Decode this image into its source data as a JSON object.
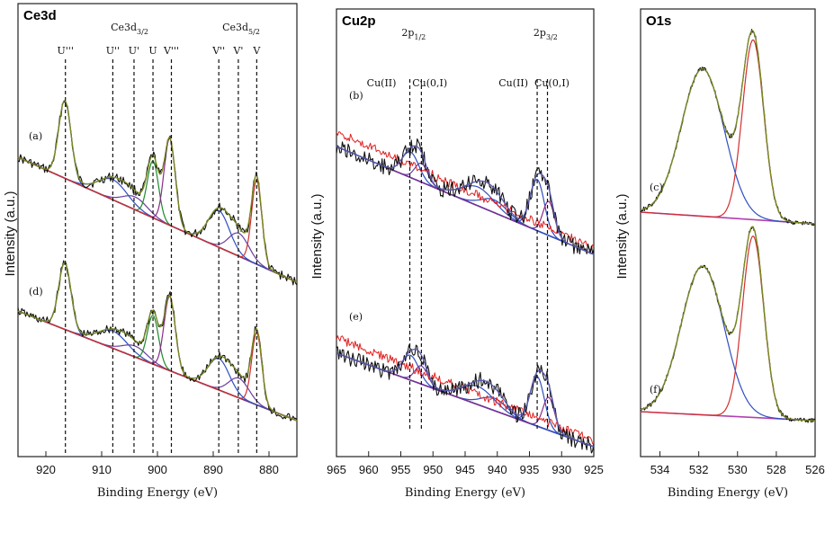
{
  "chart_data": [
    {
      "type": "line",
      "title": "Ce3d",
      "xlabel": "Binding Energy (eV)",
      "ylabel": "Intensity (a.u.)",
      "xlim": [
        925,
        875
      ],
      "xticks": [
        920,
        910,
        900,
        890,
        880
      ],
      "group_labels": [
        {
          "main": "Ce3d",
          "sub": "3/2",
          "x": 905
        },
        {
          "main": "Ce3d",
          "sub": "5/2",
          "x": 885
        }
      ],
      "peaks": [
        {
          "label": "U'''",
          "x": 916.5
        },
        {
          "label": "U''",
          "x": 908
        },
        {
          "label": "U'",
          "x": 904.2
        },
        {
          "label": "U",
          "x": 900.8
        },
        {
          "label": "V'''",
          "x": 897.5
        },
        {
          "label": "V''",
          "x": 889
        },
        {
          "label": "V'",
          "x": 885.5
        },
        {
          "label": "V",
          "x": 882.2
        }
      ],
      "spectra": [
        {
          "label": "(a)",
          "level": 0
        },
        {
          "label": "(d)",
          "level": 1
        }
      ],
      "components": [
        {
          "center": 916.6,
          "amp": 0.85,
          "width": 1.1,
          "color": "#2f4fbf"
        },
        {
          "center": 908.0,
          "amp": 0.22,
          "width": 2.6,
          "color": "#2f4fbf"
        },
        {
          "center": 904.0,
          "amp": 0.14,
          "width": 2.2,
          "color": "#6a3fa0"
        },
        {
          "center": 900.8,
          "amp": 0.62,
          "width": 1.0,
          "color": "#1e8a2e"
        },
        {
          "center": 897.8,
          "amp": 0.95,
          "width": 1.0,
          "color": "#8a2b8a"
        },
        {
          "center": 889.0,
          "amp": 0.4,
          "width": 1.9,
          "color": "#2f4fbf"
        },
        {
          "center": 885.4,
          "amp": 0.25,
          "width": 1.8,
          "color": "#6a3fa0"
        },
        {
          "center": 882.2,
          "amp": 0.92,
          "width": 0.9,
          "color": "#d03030"
        }
      ]
    },
    {
      "type": "line",
      "title": "Cu2p",
      "xlabel": "Binding Energy (eV)",
      "ylabel": "Intensity (a.u.)",
      "xlim": [
        965,
        925
      ],
      "xticks": [
        965,
        960,
        955,
        950,
        945,
        940,
        935,
        930,
        925
      ],
      "group_labels": [
        {
          "main": "2p",
          "sub": "1/2",
          "x": 953
        },
        {
          "main": "2p",
          "sub": "3/2",
          "x": 932.5
        }
      ],
      "state_labels": [
        {
          "label": "Cu(II)",
          "x": 958
        },
        {
          "label": "Cu(0,I)",
          "x": 950.5
        },
        {
          "label": "Cu(II)",
          "x": 937.5
        },
        {
          "label": "Cu(0,I)",
          "x": 931.5
        }
      ],
      "peaks": [
        {
          "label": "",
          "x": 953.6
        },
        {
          "label": "",
          "x": 951.8
        },
        {
          "label": "",
          "x": 933.8
        },
        {
          "label": "",
          "x": 932.2
        }
      ],
      "spectra": [
        {
          "label": "(b)",
          "level": 0
        },
        {
          "label": "(e)",
          "level": 1
        }
      ],
      "components": [
        {
          "center": 953.5,
          "amp": 0.3,
          "width": 1.3,
          "color": "#2f4fbf"
        },
        {
          "center": 951.8,
          "amp": 0.22,
          "width": 1.0,
          "color": "#6a3fa0"
        },
        {
          "center": 943.0,
          "amp": 0.22,
          "width": 2.5,
          "color": "#2f4fbf"
        },
        {
          "center": 940.5,
          "amp": 0.15,
          "width": 2.0,
          "color": "#2f4fbf"
        },
        {
          "center": 933.8,
          "amp": 0.6,
          "width": 1.1,
          "color": "#2f4fbf"
        },
        {
          "center": 932.0,
          "amp": 0.4,
          "width": 0.9,
          "color": "#8a2b8a"
        }
      ]
    },
    {
      "type": "line",
      "title": "O1s",
      "xlabel": "Binding Energy (eV)",
      "ylabel": "Intensity (a.u.)",
      "xlim": [
        535,
        526
      ],
      "xticks": [
        534,
        532,
        530,
        528,
        526
      ],
      "spectra": [
        {
          "label": "(c)",
          "level": 0
        },
        {
          "label": "(f)",
          "level": 1
        }
      ],
      "components": [
        {
          "center": 531.8,
          "amp": 0.82,
          "width": 1.1,
          "color": "#2f4fbf"
        },
        {
          "center": 529.2,
          "amp": 1.0,
          "width": 0.55,
          "color": "#d03030"
        }
      ]
    }
  ]
}
